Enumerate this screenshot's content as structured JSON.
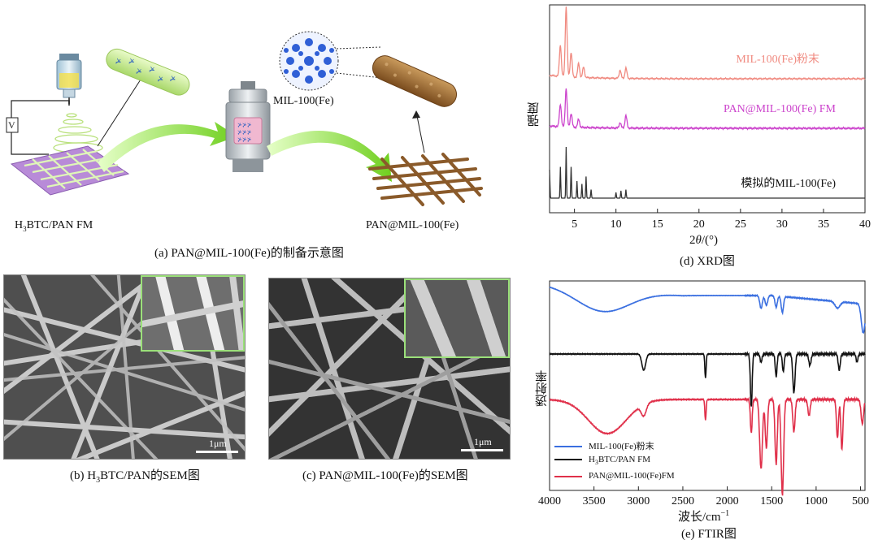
{
  "panel_a": {
    "caption": "(a) PAN@MIL-100(Fe)的制备示意图",
    "label_left": "H",
    "label_left_sub": "3",
    "label_left_rest": "BTC/PAN FM",
    "label_right": "PAN@MIL-100(Fe)",
    "label_mof": "MIL-100(Fe)",
    "voltage_symbol": "V"
  },
  "panel_b": {
    "caption_pre": "(b) H",
    "caption_sub": "3",
    "caption_post": "BTC/PAN的SEM图",
    "scale": "1μm"
  },
  "panel_c": {
    "caption": "(c) PAN@MIL-100(Fe)的SEM图",
    "scale": "1μm"
  },
  "colors": {
    "mof_powder": "#f08a80",
    "pan_mof": "#cc44cc",
    "simulated": "#333333",
    "ftir_mof": "#3a6fe0",
    "ftir_btc": "#111111",
    "ftir_pan_mof": "#e0304a",
    "arrow_green": "#7dd62a",
    "fiber_brown": "#8a5a2a",
    "membrane_purple": "#b88bd8"
  },
  "chart_data": [
    {
      "type": "line",
      "caption": "(d) XRD图",
      "xlabel_pre": "2",
      "xlabel_theta": "θ",
      "xlabel_post": "/(°)",
      "ylabel": "强度",
      "xlim": [
        2,
        40
      ],
      "xticks": [
        5,
        10,
        15,
        20,
        25,
        30,
        35,
        40
      ],
      "series": [
        {
          "name": "MIL-100(Fe)粉末",
          "peaks": [
            [
              3.3,
              0.45
            ],
            [
              4.0,
              1.0
            ],
            [
              4.6,
              0.35
            ],
            [
              5.5,
              0.2
            ],
            [
              6.1,
              0.15
            ],
            [
              10.5,
              0.12
            ],
            [
              11.2,
              0.15
            ]
          ]
        },
        {
          "name": "PAN@MIL-100(Fe) FM",
          "peaks": [
            [
              3.3,
              0.5
            ],
            [
              4.0,
              0.85
            ],
            [
              4.6,
              0.3
            ],
            [
              5.5,
              0.18
            ],
            [
              10.5,
              0.12
            ],
            [
              11.2,
              0.28
            ]
          ]
        },
        {
          "name": "模拟的MIL-100(Fe)",
          "peaks": [
            [
              2.0,
              0.5
            ],
            [
              3.3,
              0.55
            ],
            [
              4.0,
              0.9
            ],
            [
              4.6,
              0.55
            ],
            [
              5.3,
              0.3
            ],
            [
              5.9,
              0.25
            ],
            [
              6.4,
              0.38
            ],
            [
              7.0,
              0.15
            ],
            [
              10.0,
              0.1
            ],
            [
              10.6,
              0.13
            ],
            [
              11.2,
              0.15
            ]
          ]
        }
      ]
    },
    {
      "type": "line",
      "caption": "(e) FTIR图",
      "xlabel": "波长/cm",
      "xlabel_sup": "−1",
      "ylabel": "透射率",
      "xlim": [
        4000,
        450
      ],
      "xticks": [
        4000,
        3500,
        3000,
        2500,
        2000,
        1500,
        1000,
        500
      ],
      "legend": "bottom-left",
      "series": [
        {
          "name": "MIL-100(Fe)粉末"
        },
        {
          "name_pre": "H",
          "name_sub": "3",
          "name_post": "BTC/PAN FM"
        },
        {
          "name": "PAN@MIL-100(Fe)FM"
        }
      ]
    }
  ]
}
